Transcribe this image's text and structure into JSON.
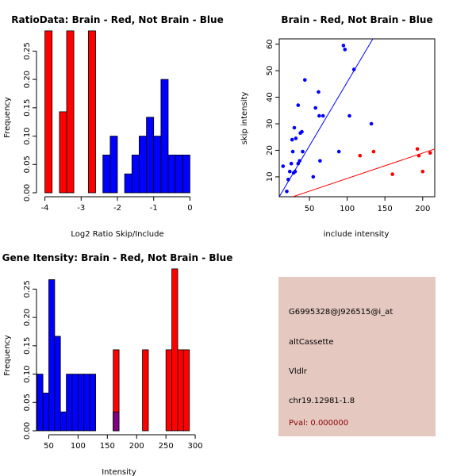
{
  "colors": {
    "brain": "#ff0000",
    "not_brain": "#0000ff",
    "overlap": "#800080",
    "info_bg": "#e5c8c0",
    "pval_text": "#8b0000"
  },
  "chart_data": [
    {
      "id": "ratio",
      "type": "bar",
      "title": "RatioData: Brain - Red, Not Brain - Blue",
      "xlabel": "Log2 Ratio Skip/Include",
      "ylabel": "Frequency",
      "xlim": [
        -4.1,
        0.1
      ],
      "ylim": [
        0,
        0.3
      ],
      "xticks": [
        -4,
        -3,
        -2,
        -1,
        0
      ],
      "yticks": [
        0,
        0.05,
        0.1,
        0.15,
        0.2,
        0.25
      ],
      "ytick_labels": [
        "0.00",
        "0.05",
        "0.10",
        "0.15",
        "0.20",
        "0.25"
      ],
      "series": [
        {
          "name": "Brain",
          "color": "red",
          "bins": [
            {
              "x0": -4.0,
              "x1": -3.8,
              "y": 0.2857
            },
            {
              "x0": -3.6,
              "x1": -3.4,
              "y": 0.1429
            },
            {
              "x0": -3.4,
              "x1": -3.2,
              "y": 0.2857
            },
            {
              "x0": -2.8,
              "x1": -2.6,
              "y": 0.2857
            }
          ]
        },
        {
          "name": "Not Brain",
          "color": "blue",
          "bins": [
            {
              "x0": -2.4,
              "x1": -2.2,
              "y": 0.0667
            },
            {
              "x0": -2.2,
              "x1": -2.0,
              "y": 0.1
            },
            {
              "x0": -1.8,
              "x1": -1.6,
              "y": 0.0333
            },
            {
              "x0": -1.6,
              "x1": -1.4,
              "y": 0.0667
            },
            {
              "x0": -1.4,
              "x1": -1.2,
              "y": 0.1
            },
            {
              "x0": -1.2,
              "x1": -1.0,
              "y": 0.1333
            },
            {
              "x0": -1.0,
              "x1": -0.8,
              "y": 0.1
            },
            {
              "x0": -0.8,
              "x1": -0.6,
              "y": 0.2
            },
            {
              "x0": -0.6,
              "x1": -0.4,
              "y": 0.0667
            },
            {
              "x0": -0.4,
              "x1": -0.2,
              "y": 0.0667
            },
            {
              "x0": -0.2,
              "x1": 0.0,
              "y": 0.0667
            }
          ]
        }
      ]
    },
    {
      "id": "scatter",
      "type": "scatter",
      "title": "Brain - Red, Not Brain - Blue",
      "xlabel": "include intensity",
      "ylabel": "skip intensity",
      "xlim": [
        10,
        216
      ],
      "ylim": [
        2.5,
        62
      ],
      "xticks": [
        50,
        100,
        150,
        200
      ],
      "yticks": [
        10,
        20,
        30,
        40,
        50,
        60
      ],
      "series": [
        {
          "name": "Not Brain",
          "color": "blue",
          "points": [
            [
              15,
              14
            ],
            [
              20,
              4.5
            ],
            [
              22,
              9
            ],
            [
              24,
              12
            ],
            [
              26,
              15
            ],
            [
              27,
              24
            ],
            [
              28,
              19.5
            ],
            [
              29,
              11.5
            ],
            [
              30,
              28.5
            ],
            [
              31,
              12
            ],
            [
              32,
              24.5
            ],
            [
              35,
              15
            ],
            [
              35,
              37
            ],
            [
              37,
              16
            ],
            [
              38,
              26.5
            ],
            [
              40,
              27
            ],
            [
              41,
              19.5
            ],
            [
              44,
              46.5
            ],
            [
              55,
              10
            ],
            [
              58,
              36
            ],
            [
              62,
              42
            ],
            [
              63,
              33
            ],
            [
              64,
              16
            ],
            [
              68,
              33
            ],
            [
              89,
              19.5
            ],
            [
              95,
              59.5
            ],
            [
              97,
              58
            ],
            [
              103,
              33
            ],
            [
              109,
              50.5
            ],
            [
              132,
              30
            ]
          ]
        },
        {
          "name": "Brain",
          "color": "red",
          "points": [
            [
              117,
              18
            ],
            [
              135,
              19.5
            ],
            [
              160,
              11
            ],
            [
              193,
              20.5
            ],
            [
              195,
              18
            ],
            [
              200,
              12
            ],
            [
              210,
              19
            ]
          ]
        }
      ],
      "fit_lines": [
        {
          "name": "Not Brain fit",
          "color": "blue",
          "from": [
            10,
            2.5
          ],
          "to": [
            134,
            62
          ]
        },
        {
          "name": "Brain fit",
          "color": "red",
          "from": [
            28,
            2.5
          ],
          "to": [
            216,
            20.5
          ]
        }
      ]
    },
    {
      "id": "gene",
      "type": "bar",
      "title": "Gene Itensity: Brain - Red, Not Brain - Blue",
      "xlabel": "Intensity",
      "ylabel": "Frequency",
      "xlim": [
        25,
        308
      ],
      "ylim": [
        0,
        0.3
      ],
      "xticks": [
        50,
        100,
        150,
        200,
        250,
        300
      ],
      "yticks": [
        0,
        0.05,
        0.1,
        0.15,
        0.2,
        0.25
      ],
      "ytick_labels": [
        "0.00",
        "0.05",
        "0.10",
        "0.15",
        "0.20",
        "0.25"
      ],
      "series": [
        {
          "name": "Not Brain",
          "color": "blue",
          "bins": [
            {
              "x0": 30,
              "x1": 40,
              "y": 0.1
            },
            {
              "x0": 40,
              "x1": 50,
              "y": 0.0667
            },
            {
              "x0": 50,
              "x1": 60,
              "y": 0.2667
            },
            {
              "x0": 60,
              "x1": 70,
              "y": 0.1667
            },
            {
              "x0": 70,
              "x1": 80,
              "y": 0.0333
            },
            {
              "x0": 80,
              "x1": 90,
              "y": 0.1
            },
            {
              "x0": 90,
              "x1": 100,
              "y": 0.1
            },
            {
              "x0": 100,
              "x1": 110,
              "y": 0.1
            },
            {
              "x0": 110,
              "x1": 120,
              "y": 0.1
            },
            {
              "x0": 120,
              "x1": 130,
              "y": 0.1
            },
            {
              "x0": 160,
              "x1": 170,
              "y": 0.0333
            }
          ]
        },
        {
          "name": "Brain",
          "color": "red",
          "bins": [
            {
              "x0": 160,
              "x1": 170,
              "y": 0.1429
            },
            {
              "x0": 210,
              "x1": 220,
              "y": 0.1429
            },
            {
              "x0": 250,
              "x1": 260,
              "y": 0.1429
            },
            {
              "x0": 260,
              "x1": 270,
              "y": 0.2857
            },
            {
              "x0": 270,
              "x1": 280,
              "y": 0.1429
            },
            {
              "x0": 280,
              "x1": 290,
              "y": 0.1429
            }
          ]
        }
      ],
      "overlap_bins": [
        {
          "x0": 160,
          "x1": 170,
          "y": 0.0333
        }
      ]
    }
  ],
  "info_panel": {
    "probe_id": "G6995328@J926515@i_at",
    "event_type": "altCassette",
    "gene": "Vldlr",
    "location": "chr19.12981-1.8",
    "pval": "Pval: 0.000000"
  }
}
